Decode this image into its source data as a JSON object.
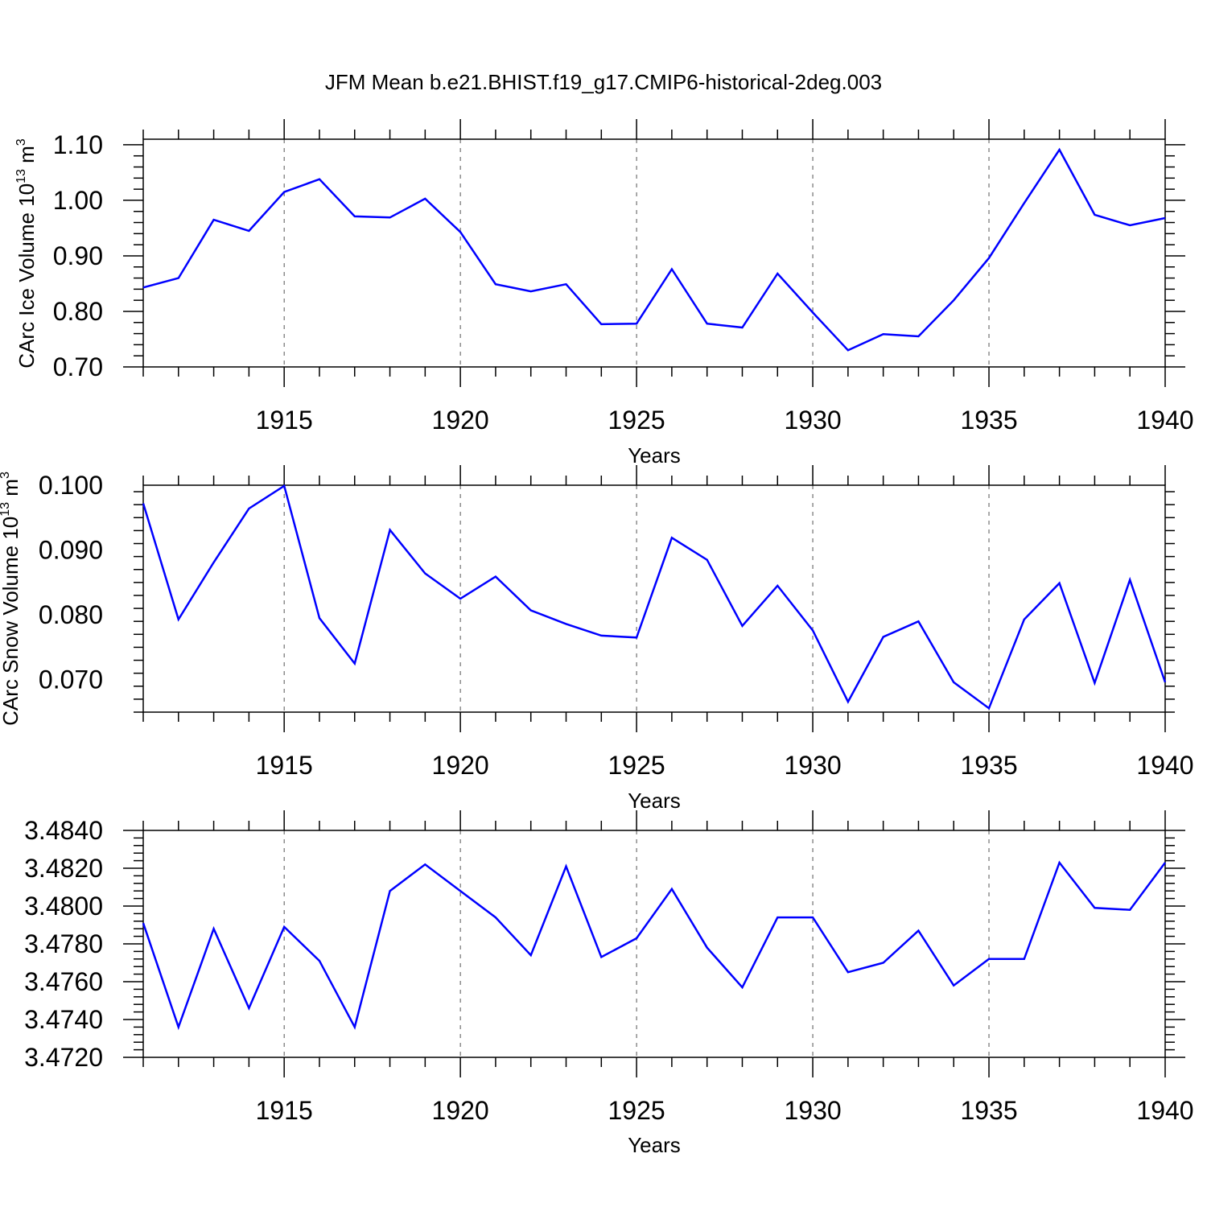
{
  "title": "JFM Mean b.e21.BHIST.f19_g17.CMIP6-historical-2deg.003",
  "colors": {
    "line": "#0000ff",
    "axis": "#000000",
    "grid": "#555555"
  },
  "chart_data": [
    {
      "type": "line",
      "xlabel": "Years",
      "ylabel": "CArc Ice Volume 10",
      "ylabel_exp": "13",
      "ylabel_unit": "m",
      "ylabel_unit_exp": "3",
      "xlim": [
        1911,
        1940
      ],
      "ylim": [
        0.7,
        1.11
      ],
      "xticks": [
        1915,
        1920,
        1925,
        1930,
        1935,
        1940
      ],
      "xtick_labels": [
        "1915",
        "1920",
        "1925",
        "1930",
        "1935",
        "1940"
      ],
      "yticks": [
        0.7,
        0.8,
        0.9,
        1.0,
        1.1
      ],
      "ytick_labels": [
        "0.70",
        "0.80",
        "0.90",
        "1.00",
        "1.10"
      ],
      "grid": "vertical dashed at major x ticks",
      "x": [
        1911,
        1912,
        1913,
        1914,
        1915,
        1916,
        1917,
        1918,
        1919,
        1920,
        1921,
        1922,
        1923,
        1924,
        1925,
        1926,
        1927,
        1928,
        1929,
        1930,
        1931,
        1932,
        1933,
        1934,
        1935,
        1936,
        1937,
        1938,
        1939,
        1940
      ],
      "values": [
        0.843,
        0.86,
        0.965,
        0.945,
        1.015,
        1.038,
        0.971,
        0.969,
        1.003,
        0.943,
        0.849,
        0.836,
        0.849,
        0.777,
        0.778,
        0.876,
        0.778,
        0.771,
        0.868,
        0.798,
        0.73,
        0.759,
        0.755,
        0.82,
        0.896,
        0.995,
        1.091,
        0.974,
        0.955,
        0.968
      ]
    },
    {
      "type": "line",
      "xlabel": "Years",
      "ylabel": "CArc Snow Volume 10",
      "ylabel_exp": "13",
      "ylabel_unit": "m",
      "ylabel_unit_exp": "3",
      "xlim": [
        1911,
        1940
      ],
      "ylim": [
        0.065,
        0.1
      ],
      "xticks": [
        1915,
        1920,
        1925,
        1930,
        1935,
        1940
      ],
      "xtick_labels": [
        "1915",
        "1920",
        "1925",
        "1930",
        "1935",
        "1940"
      ],
      "yticks": [
        0.07,
        0.08,
        0.09,
        0.1
      ],
      "ytick_labels": [
        "0.070",
        "0.080",
        "0.090",
        "0.100"
      ],
      "grid": "vertical dashed at major x ticks",
      "x": [
        1911,
        1912,
        1913,
        1914,
        1915,
        1916,
        1917,
        1918,
        1919,
        1920,
        1921,
        1922,
        1923,
        1924,
        1925,
        1926,
        1927,
        1928,
        1929,
        1930,
        1931,
        1932,
        1933,
        1934,
        1935,
        1936,
        1937,
        1938,
        1939,
        1940
      ],
      "values": [
        0.0972,
        0.0793,
        0.0881,
        0.0964,
        0.0999,
        0.0795,
        0.0725,
        0.0931,
        0.0864,
        0.0825,
        0.0859,
        0.0807,
        0.0786,
        0.0768,
        0.0765,
        0.0919,
        0.0885,
        0.0783,
        0.0845,
        0.0776,
        0.0666,
        0.0766,
        0.079,
        0.0696,
        0.0656,
        0.0793,
        0.0849,
        0.0695,
        0.0854,
        0.0696
      ]
    },
    {
      "type": "line",
      "xlabel": "Years",
      "ylabel": "",
      "xlim": [
        1911,
        1940
      ],
      "ylim": [
        3.472,
        3.484
      ],
      "xticks": [
        1915,
        1920,
        1925,
        1930,
        1935,
        1940
      ],
      "xtick_labels": [
        "1915",
        "1920",
        "1925",
        "1930",
        "1935",
        "1940"
      ],
      "yticks": [
        3.472,
        3.474,
        3.476,
        3.478,
        3.48,
        3.482,
        3.484
      ],
      "ytick_labels": [
        "3.4720",
        "3.4740",
        "3.4760",
        "3.4780",
        "3.4800",
        "3.4820",
        "3.4840"
      ],
      "grid": "vertical dashed at major x ticks",
      "x": [
        1911,
        1912,
        1913,
        1914,
        1915,
        1916,
        1917,
        1918,
        1919,
        1920,
        1921,
        1922,
        1923,
        1924,
        1925,
        1926,
        1927,
        1928,
        1929,
        1930,
        1931,
        1932,
        1933,
        1934,
        1935,
        1936,
        1937,
        1938,
        1939,
        1940
      ],
      "values": [
        3.4791,
        3.4736,
        3.4788,
        3.4746,
        3.4789,
        3.4771,
        3.4736,
        3.4808,
        3.4822,
        3.4808,
        3.4794,
        3.4774,
        3.4821,
        3.4773,
        3.4783,
        3.4809,
        3.4778,
        3.4757,
        3.4794,
        3.4794,
        3.4765,
        3.477,
        3.4787,
        3.4758,
        3.4772,
        3.4772,
        3.4823,
        3.4799,
        3.4798,
        3.4823
      ]
    }
  ]
}
